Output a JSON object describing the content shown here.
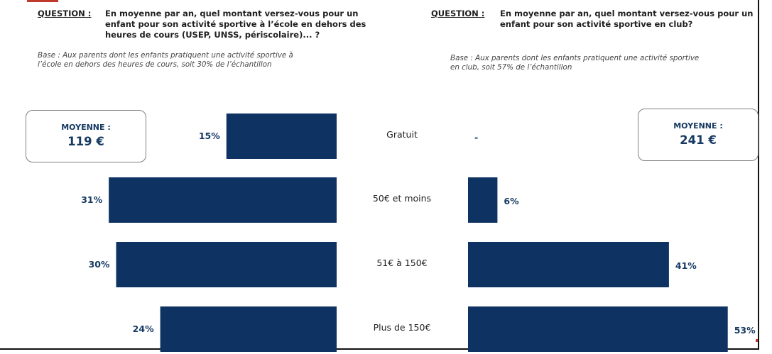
{
  "left": {
    "question_label": "QUESTION :",
    "question_lines": [
      "En moyenne par an, quel montant versez-vous pour un",
      "enfant pour son activité sportive à l’école en dehors des",
      "heures de cours (USEP, UNSS, périscolaire)... ?"
    ],
    "base_lines": [
      "Base : Aux parents dont les enfants pratiquent une activité sportive à",
      "l’école en dehors des heures de cours, soit 30% de l’échantillon"
    ],
    "avg_title": "MOYENNE :",
    "avg_value": "119 €"
  },
  "right": {
    "question_label": "QUESTION :",
    "question_lines": [
      "En moyenne par an, quel montant versez-vous pour un",
      "enfant pour son activité sportive en club?"
    ],
    "base_lines": [
      "Base : Aux parents dont les enfants pratiquent une activité sportive",
      "en club, soit 57% de l’échantillon"
    ],
    "avg_title": "MOYENNE :",
    "avg_value": "241 €"
  },
  "chart_data": {
    "type": "bar",
    "orientation": "horizontal-butterfly",
    "categories": [
      "Gratuit",
      "50€ et moins",
      "51€ à 150€",
      "Plus de 150€"
    ],
    "series": [
      {
        "values": [
          15,
          31,
          30,
          24
        ],
        "labels": [
          "15%",
          "31%",
          "30%",
          "24%"
        ]
      },
      {
        "values": [
          null,
          6,
          41,
          53
        ],
        "labels": [
          "-",
          "6%",
          "41%",
          "53%"
        ]
      }
    ],
    "unit": "%",
    "bar_color": "#0e3363",
    "label_color": "#173a63"
  }
}
